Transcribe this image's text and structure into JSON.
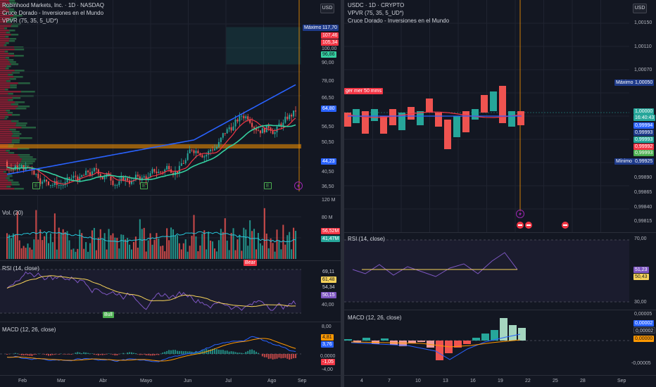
{
  "left": {
    "title": "Robinhood Markets, Inc. · 1D · NASDAQ",
    "indicator1": "Cruce Dorado - Inversiones en el Mundo",
    "indicator2": "VPVR (75, 35, 5_UD*)",
    "currency": "USD",
    "max_label": "Máximo",
    "price_labels": {
      "max": "117,70",
      "p1": "107,46",
      "p2": "105,34",
      "p3": "96,86",
      "p4": "64,80",
      "p5": "44,23"
    },
    "price_ticks": [
      "100,00",
      "90,00",
      "78,00",
      "66,50",
      "56,50",
      "50,50",
      "40,50",
      "36,50"
    ],
    "vol_title": "Vol. (20)",
    "vol_ticks": [
      "120 M",
      "80 M"
    ],
    "vol_labels": [
      "56,52M",
      "41,47M"
    ],
    "rsi_title": "RSI (14, close)",
    "rsi_labels": [
      "69,11",
      "61,48",
      "54,34",
      "50,15"
    ],
    "rsi_tick": "40,00",
    "bear": "Bear",
    "bull": "Bull",
    "macd_title": "MACD (12, 26, close)",
    "macd_ticks": [
      "8,00",
      "0,0000",
      "-4,00"
    ],
    "macd_labels": [
      "4,81",
      "3,76",
      "-1,05"
    ],
    "months": [
      "Feb",
      "Mar",
      "Abr",
      "Mayo",
      "Jun",
      "Jul",
      "Ago",
      "Sep"
    ],
    "earnings": [
      "E",
      "E",
      "E"
    ]
  },
  "right": {
    "title": "USDC · 1D · CRYPTO",
    "indicator2": "VPVR (75, 35, 5_UD*)",
    "indicator1": "Cruce Dorado - Inversiones en el Mundo",
    "currency": "USD",
    "max_label": "Máximo",
    "min_label": "Mínimo",
    "annotation": "ger mer 50 mms",
    "price_ticks": [
      "1,00150",
      "1,00110",
      "1,00070",
      "0,99890",
      "0,99865",
      "0,99840",
      "0,99815"
    ],
    "price_labels": {
      "max": "1,00050",
      "cur": "1,00000",
      "time": "16:40:43",
      "a": "0,99994",
      "b": "0,99993",
      "c": "0,99993",
      "d": "0,99992",
      "min": "0,99925"
    },
    "rsi_title": "RSI (14, close)",
    "rsi_ticks": [
      "70,00",
      "30,00"
    ],
    "rsi_labels": [
      "51,23",
      "50,43"
    ],
    "macd_title": "MACD (12, 26, close)",
    "macd_ticks": [
      "0,00005",
      "-0,00005"
    ],
    "macd_labels": [
      "0,00002",
      "0,00002",
      "0,00000"
    ],
    "days": [
      "4",
      "7",
      "10",
      "13",
      "16",
      "19",
      "22",
      "25",
      "28",
      "Sep"
    ]
  },
  "colors": {
    "bg": "#131722",
    "up": "#26a69a",
    "down": "#ef5350",
    "ma_fast": "#f23645",
    "ma_mid": "#35d0a0",
    "ma_slow": "#2962ff",
    "orange": "#ff9800",
    "purple": "#7e57c2"
  }
}
